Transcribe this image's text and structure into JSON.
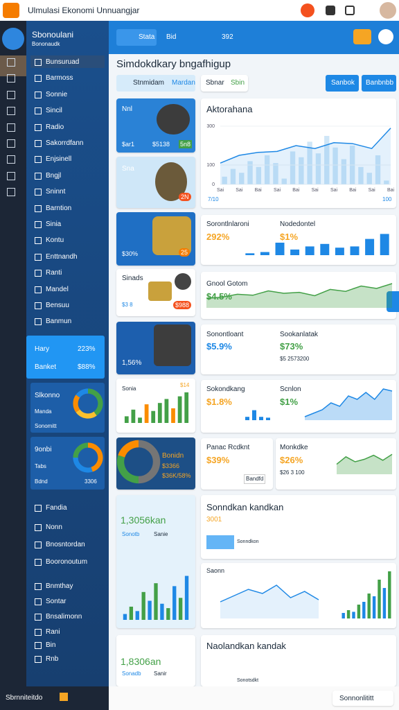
{
  "topbar": {
    "title": "Ulmulasi Ekonomi Unnuangjar"
  },
  "sidebar": {
    "brand": "Sbonoulani",
    "tagline": "Bononaudk",
    "items": [
      "Bunsuruad",
      "Barmoss",
      "Sonnie",
      "Sincil",
      "Radio",
      "Sakorrdfann",
      "Enjsinell",
      "Bngjl",
      "Sninnt",
      "Barntion",
      "Sinia",
      "Kontu",
      "Enttnandh",
      "Ranti",
      "Mandel",
      "Bensuu",
      "Banmun"
    ],
    "stat": [
      [
        "Hary",
        "223%"
      ],
      [
        "Banket",
        "$88%"
      ]
    ],
    "donut_cards": [
      {
        "title": "Slkonno",
        "line1": "Manda",
        "line2": "Sonomitt"
      },
      {
        "title": "9onbi",
        "line1": "Tabs",
        "line2": "Bdnd",
        "badge": "3306"
      }
    ],
    "bottom_items": [
      "Fandia",
      "Nonn",
      "Bnosntordan",
      "Booronoutum",
      "Bnmthay",
      "Sontar",
      "Bnsalimonn",
      "Rani",
      "Bin",
      "Rnb"
    ],
    "footer": "Sbrnniteitdo"
  },
  "header": {
    "tabs": [
      "Stata",
      "Bid",
      "392"
    ]
  },
  "main": {
    "title": "Simdokdkary bngafhigup",
    "tabs": [
      "Stnmidam",
      "Mardan",
      "Sbnar",
      "Sbin"
    ],
    "buttons": [
      "Sanbok",
      "Banbnbb"
    ],
    "footer_button": "Sonnonlititt"
  },
  "left_cards": [
    {
      "title": "Nnl",
      "line1": "$ar1",
      "line2": "$5138",
      "badge": "5n8"
    },
    {
      "title": "Sna",
      "badge": "2N"
    },
    {
      "line1": "$30%",
      "badge": "25"
    },
    {
      "title": "Sinads",
      "line1": "$3 8",
      "badge": "$988"
    },
    {
      "line1": "1,56%"
    },
    {
      "title": "Sonia",
      "badge": "$14"
    },
    {
      "title": "Bonidn",
      "line1": "$3366",
      "line2": "$36K/58%"
    },
    {
      "title": "1,3056kan",
      "line1": "Sonotb",
      "line2": "Sanie"
    },
    {
      "title": "1,8306an",
      "line1": "Sonadb",
      "line2": "Sanir"
    }
  ],
  "right_cards": [
    {
      "title": "Nodedontel",
      "value": "$1%"
    },
    {
      "title": "Sonontloant",
      "value": "$5.9%",
      "note": "$5 2573200"
    },
    {
      "title": "Sookanlatak",
      "value": "$73%"
    },
    {
      "title": "Scnlon",
      "value": "$1%"
    },
    {
      "title": "Panac Rcdknt",
      "value": "$39%",
      "note": "Bandfd"
    },
    {
      "title": "Monkdke",
      "value": "$26%",
      "note": "$26 3 100"
    },
    {
      "title": "Sonndkan kandkan",
      "value": "3001",
      "note": "Sonndkon"
    },
    {
      "title": "Naolandkan kandak",
      "note": "Sonotsdkt"
    }
  ],
  "chart_data": [
    {
      "type": "line",
      "title": "Aktorahana",
      "annotations": [
        "7/10",
        "100"
      ],
      "categories": [
        "Sai",
        "Sai",
        "Bai",
        "Sai",
        "Bai",
        "Sai",
        "Sai",
        "Bai",
        "Sai",
        "Bai"
      ],
      "values": [
        110,
        150,
        165,
        170,
        200,
        185,
        215,
        210,
        185,
        290
      ],
      "color": "#1e88e5",
      "ylim": [
        0,
        300
      ],
      "yticks": [
        0,
        100,
        300
      ]
    },
    {
      "type": "bar",
      "values": [
        40,
        80,
        60,
        120,
        90,
        150,
        110,
        30,
        170,
        140,
        220,
        160,
        250,
        190,
        130,
        200,
        90,
        60,
        150,
        20
      ],
      "color": "#cfe6f7",
      "ylim": [
        0,
        300
      ]
    },
    {
      "type": "bar",
      "title": "Sorontlnlaroni",
      "subtitle": "292%",
      "values": [
        3,
        5,
        20,
        9,
        14,
        18,
        12,
        14,
        26,
        34
      ],
      "color": "#1e88e5",
      "ylim": [
        0,
        40
      ]
    },
    {
      "type": "area",
      "title": "Gnool Gotom",
      "subtitle": "$4.5%",
      "values": [
        20,
        22,
        28,
        26,
        35,
        30,
        32,
        25,
        38,
        34,
        45,
        40,
        50
      ],
      "color": "#43a047",
      "ylim": [
        0,
        60
      ]
    },
    {
      "type": "bar",
      "title": "Sokondkang",
      "subtitle": "$1.8%",
      "values": [
        4,
        12,
        4,
        3
      ],
      "color": "#1e88e5",
      "ylim": [
        0,
        15
      ]
    },
    {
      "type": "area",
      "values": [
        5,
        10,
        15,
        25,
        20,
        35,
        30,
        40,
        30,
        45,
        42
      ],
      "color": "#1e88e5",
      "ylim": [
        0,
        50
      ]
    },
    {
      "type": "area",
      "values": [
        20,
        35,
        25,
        30,
        38,
        28,
        40
      ],
      "color": "#43a047",
      "ylim": [
        0,
        50
      ]
    },
    {
      "type": "line",
      "title": "Saonn",
      "values": [
        40,
        55,
        70,
        60,
        80,
        50,
        65,
        45
      ],
      "color": "#1e88e5",
      "ylim": [
        0,
        100
      ]
    },
    {
      "type": "bar",
      "values": [
        10,
        15,
        12,
        25,
        30,
        45,
        40,
        70,
        55,
        85
      ],
      "colors": [
        "#1e88e5",
        "#43a047"
      ],
      "ylim": [
        0,
        100
      ]
    },
    {
      "type": "bar",
      "values": [
        10,
        20,
        8,
        28,
        18,
        30,
        36,
        22,
        40,
        46
      ],
      "colors": [
        "#43a047",
        "#43a047",
        "#43a047",
        "#fb8c00"
      ],
      "ylim": [
        0,
        50
      ]
    },
    {
      "type": "bar",
      "values": [
        8,
        18,
        12,
        38,
        26,
        50,
        22,
        16,
        46,
        30,
        60
      ],
      "colors": [
        "#1e88e5",
        "#43a047"
      ],
      "ylim": [
        0,
        70
      ]
    },
    {
      "type": "pie",
      "values": [
        40,
        25,
        20,
        15
      ],
      "colors": [
        "#43a047",
        "#fbc02d",
        "#fb8c00",
        "#1e88e5"
      ]
    },
    {
      "type": "pie",
      "values": [
        45,
        30,
        25
      ],
      "colors": [
        "#fb8c00",
        "#1e88e5",
        "#43a047"
      ]
    },
    {
      "type": "pie",
      "values": [
        50,
        30,
        20
      ],
      "colors": [
        "#757575",
        "#43a047",
        "#fb8c00"
      ]
    }
  ]
}
